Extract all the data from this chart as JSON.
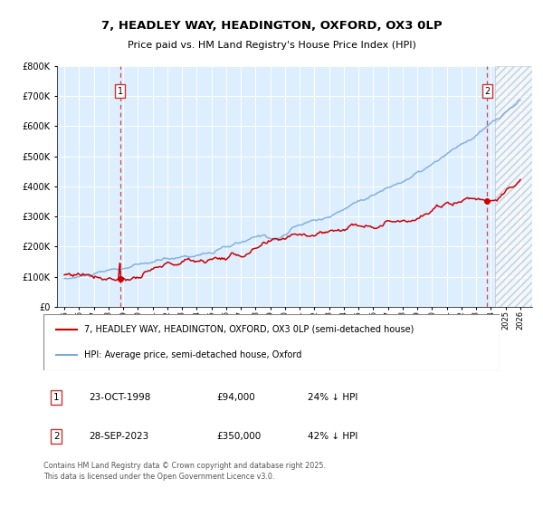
{
  "title_line1": "7, HEADLEY WAY, HEADINGTON, OXFORD, OX3 0LP",
  "title_line2": "Price paid vs. HM Land Registry's House Price Index (HPI)",
  "legend_line1": "7, HEADLEY WAY, HEADINGTON, OXFORD, OX3 0LP (semi-detached house)",
  "legend_line2": "HPI: Average price, semi-detached house, Oxford",
  "footnote": "Contains HM Land Registry data © Crown copyright and database right 2025.\nThis data is licensed under the Open Government Licence v3.0.",
  "point1_label": "1",
  "point1_date": "23-OCT-1998",
  "point1_price": "£94,000",
  "point1_hpi": "24% ↓ HPI",
  "point2_label": "2",
  "point2_date": "28-SEP-2023",
  "point2_price": "£350,000",
  "point2_hpi": "42% ↓ HPI",
  "red_color": "#cc0000",
  "blue_color": "#7aaadd",
  "bg_color": "#ddeeff",
  "grid_color": "#bbccdd",
  "vline_color": "#cc0000",
  "box_color": "#cc3333",
  "ylim": [
    0,
    800000
  ],
  "yticks": [
    0,
    100000,
    200000,
    300000,
    400000,
    500000,
    600000,
    700000,
    800000
  ],
  "xlim_start": 1994.5,
  "xlim_end": 2026.8,
  "hatch_start": 2024.25,
  "t1_year": 1998.79,
  "t2_year": 2023.74,
  "t1_price": 94000,
  "t2_price": 350000
}
